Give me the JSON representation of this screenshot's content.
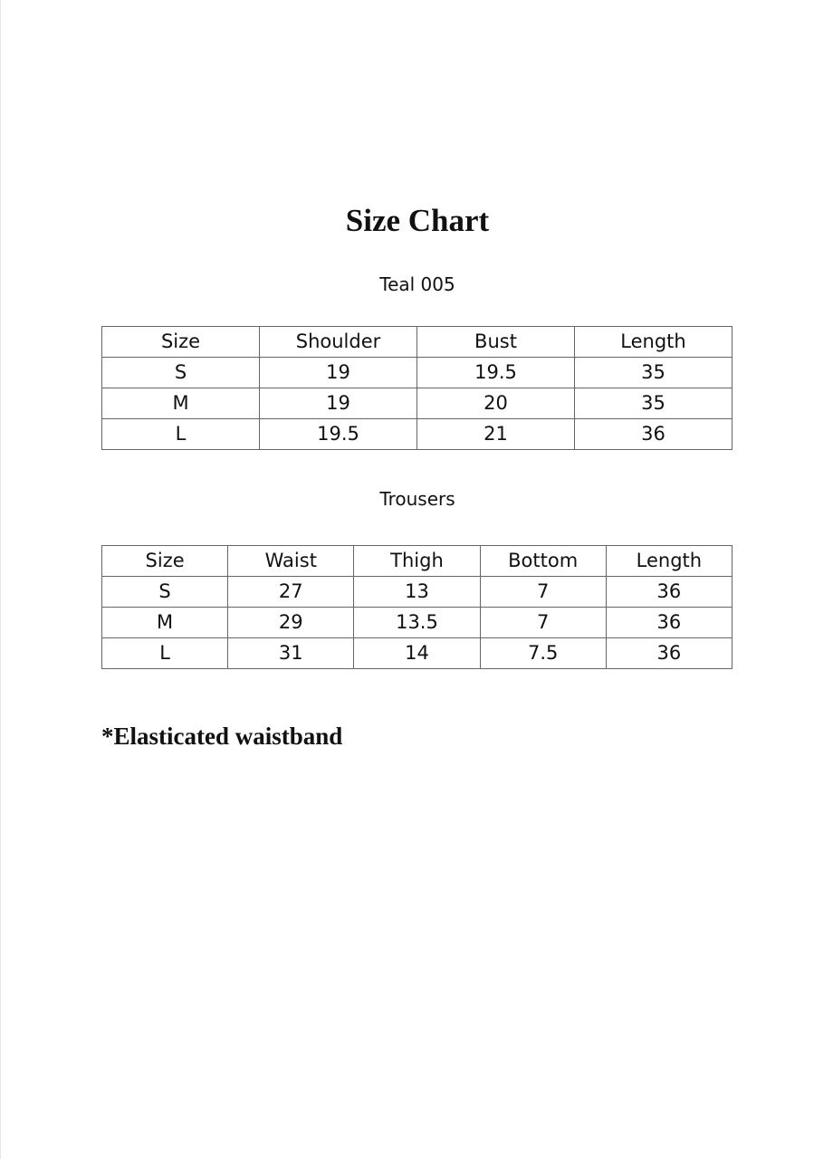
{
  "title": "Size Chart",
  "top_section": {
    "label": "Teal 005",
    "headers": [
      "Size",
      "Shoulder",
      "Bust",
      "Length"
    ],
    "rows": [
      [
        "S",
        "19",
        "19.5",
        "35"
      ],
      [
        "M",
        "19",
        "20",
        "35"
      ],
      [
        "L",
        "19.5",
        "21",
        "36"
      ]
    ]
  },
  "trousers_section": {
    "label": "Trousers",
    "headers": [
      "Size",
      "Waist",
      "Thigh",
      "Bottom",
      "Length"
    ],
    "rows": [
      [
        "S",
        "27",
        "13",
        "7",
        "36"
      ],
      [
        "M",
        "29",
        "13.5",
        "7",
        "36"
      ],
      [
        "L",
        "31",
        "14",
        "7.5",
        "36"
      ]
    ]
  },
  "footnote": "*Elasticated waistband"
}
